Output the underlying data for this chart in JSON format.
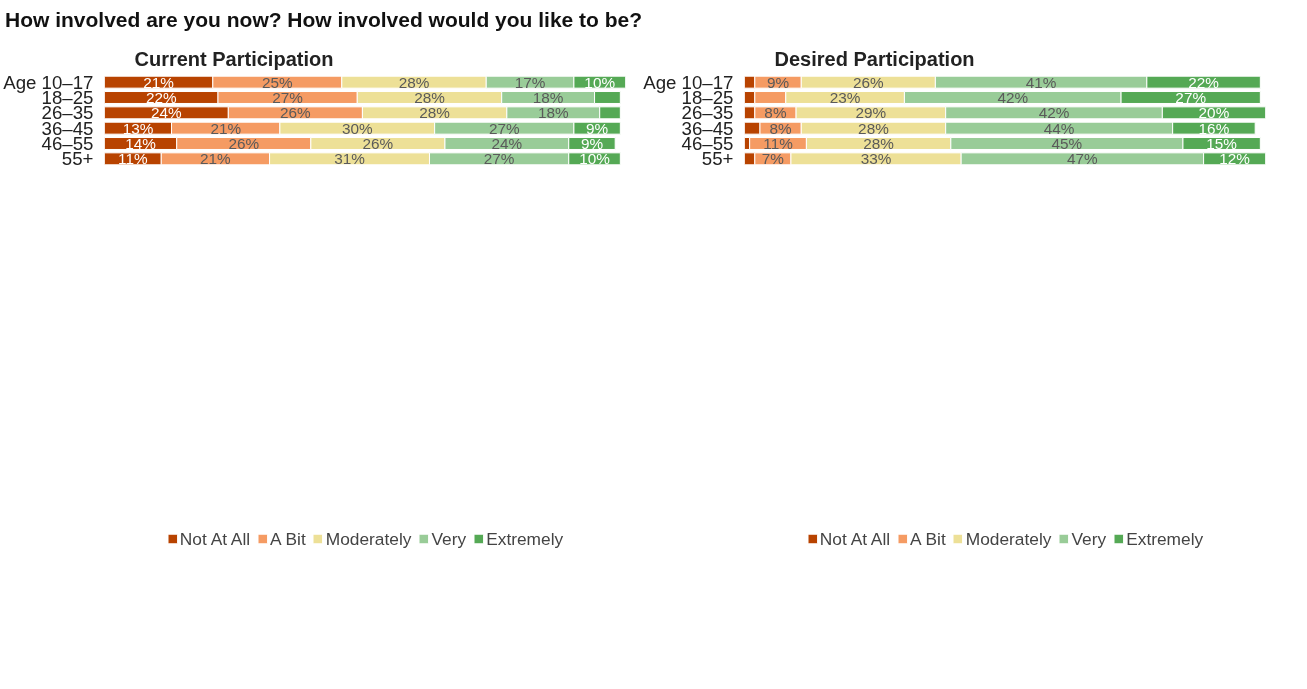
{
  "chart_data": [
    {
      "type": "bar",
      "orientation": "horizontal",
      "stacked": true,
      "title": "How involved are you now? How involved would you like to be?",
      "subtitle": "Current Participation",
      "categories": [
        "Age 10–17",
        "18–25",
        "26–35",
        "36–45",
        "46–55",
        "55+"
      ],
      "series": [
        {
          "name": "Not At All",
          "color": "#b84300",
          "values": [
            21,
            22,
            24,
            13,
            14,
            11
          ],
          "value_labels": [
            "21%",
            "22%",
            "24%",
            "13%",
            "14%",
            "11%"
          ]
        },
        {
          "name": "A Bit",
          "color": "#f59b63",
          "values": [
            25,
            27,
            26,
            21,
            26,
            21
          ],
          "value_labels": [
            "25%",
            "27%",
            "26%",
            "21%",
            "26%",
            "21%"
          ]
        },
        {
          "name": "Moderately",
          "color": "#ede097",
          "values": [
            28,
            28,
            28,
            30,
            26,
            31
          ],
          "value_labels": [
            "28%",
            "28%",
            "28%",
            "30%",
            "26%",
            "31%"
          ]
        },
        {
          "name": "Very",
          "color": "#99cc98",
          "values": [
            17,
            18,
            18,
            27,
            24,
            27
          ],
          "value_labels": [
            "17%",
            "18%",
            "18%",
            "27%",
            "24%",
            "27%"
          ]
        },
        {
          "name": "Extremely",
          "color": "#55a955",
          "values": [
            10,
            5,
            4,
            9,
            9,
            10
          ],
          "value_labels": [
            "10%",
            null,
            null,
            "9%",
            "9%",
            "10%"
          ]
        }
      ],
      "legend": "bottom",
      "grid": false
    },
    {
      "type": "bar",
      "orientation": "horizontal",
      "stacked": true,
      "subtitle": "Desired Participation",
      "categories": [
        "Age 10–17",
        "18–25",
        "26–35",
        "36–45",
        "46–55",
        "55+"
      ],
      "series": [
        {
          "name": "Not At All",
          "color": "#b84300",
          "values": [
            2,
            2,
            2,
            3,
            1,
            2
          ],
          "value_labels": [
            null,
            null,
            null,
            null,
            null,
            null
          ]
        },
        {
          "name": "A Bit",
          "color": "#f59b63",
          "values": [
            9,
            6,
            8,
            8,
            11,
            7
          ],
          "value_labels": [
            "9%",
            null,
            "8%",
            "8%",
            "11%",
            "7%"
          ]
        },
        {
          "name": "Moderately",
          "color": "#ede097",
          "values": [
            26,
            23,
            29,
            28,
            28,
            33
          ],
          "value_labels": [
            "26%",
            "23%",
            "29%",
            "28%",
            "28%",
            "33%"
          ]
        },
        {
          "name": "Very",
          "color": "#99cc98",
          "values": [
            41,
            42,
            42,
            44,
            45,
            47
          ],
          "value_labels": [
            "41%",
            "42%",
            "42%",
            "44%",
            "45%",
            "47%"
          ]
        },
        {
          "name": "Extremely",
          "color": "#55a955",
          "values": [
            22,
            27,
            20,
            16,
            15,
            12
          ],
          "value_labels": [
            "22%",
            "27%",
            "20%",
            "16%",
            "15%",
            "12%"
          ]
        }
      ],
      "legend": "bottom",
      "grid": false
    }
  ]
}
